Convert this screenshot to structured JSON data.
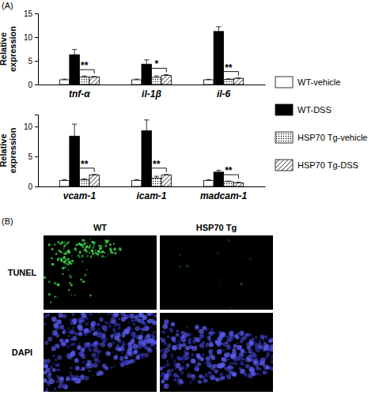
{
  "chart_data": [
    {
      "type": "bar",
      "y_label": "Relative expression",
      "categories": [
        "tnf-α",
        "il-1β",
        "il-6"
      ],
      "series": [
        {
          "name": "WT-vehicle",
          "color": "#ffffff",
          "values": [
            1.0,
            1.0,
            1.0
          ],
          "errors": [
            0.15,
            0.15,
            0.1
          ]
        },
        {
          "name": "WT-DSS",
          "color": "#000000",
          "values": [
            6.3,
            4.3,
            11.2
          ],
          "errors": [
            1.1,
            0.9,
            1.0
          ]
        },
        {
          "name": "HSP70 Tg-vehicle",
          "color": "#ffffff",
          "marker": "dots",
          "values": [
            1.6,
            1.5,
            1.1
          ],
          "errors": [
            0.2,
            0.3,
            0.1
          ]
        },
        {
          "name": "HSP70 Tg-DSS",
          "color": "#ffffff",
          "marker": "hatch",
          "values": [
            1.6,
            1.9,
            1.3
          ],
          "errors": [
            0.1,
            0.2,
            0.1
          ]
        }
      ],
      "ylim": [
        0,
        15
      ],
      "yticks": [
        0,
        5,
        10,
        15
      ],
      "legend": "right",
      "annotations": [
        {
          "text": "**",
          "category": "tnf-α"
        },
        {
          "text": "*",
          "category": "il-1β"
        },
        {
          "text": "**",
          "category": "il-6"
        }
      ]
    },
    {
      "type": "bar",
      "y_label": "Relative expression",
      "categories": [
        "vcam-1",
        "icam-1",
        "madcam-1"
      ],
      "series": [
        {
          "color": "#ffffff",
          "values": [
            1.0,
            1.0,
            1.0
          ],
          "errors": [
            0.15,
            0.15,
            0.1
          ]
        },
        {
          "color": "#000000",
          "values": [
            8.4,
            9.3,
            2.4
          ],
          "errors": [
            2.0,
            1.8,
            0.3
          ]
        },
        {
          "color": "#ffffff",
          "marker": "dots",
          "values": [
            1.1,
            1.4,
            0.8
          ],
          "errors": [
            0.15,
            0.3,
            0.1
          ]
        },
        {
          "color": "#ffffff",
          "marker": "hatch",
          "values": [
            1.9,
            1.9,
            0.6
          ],
          "errors": [
            0.1,
            0.1,
            0.1
          ]
        }
      ],
      "ylim": [
        0,
        12
      ],
      "yticks": [
        0,
        5,
        10
      ],
      "annotations": [
        {
          "text": "**",
          "category": "vcam-1"
        },
        {
          "text": "**",
          "category": "icam-1"
        },
        {
          "text": "**",
          "category": "madcam-1"
        }
      ]
    }
  ],
  "panels": {
    "a": {
      "label": "(A)"
    },
    "b": {
      "label": "(B)",
      "columns": [
        "WT",
        "HSP70 Tg"
      ],
      "rows": [
        "TUNEL",
        "DAPI"
      ]
    }
  }
}
